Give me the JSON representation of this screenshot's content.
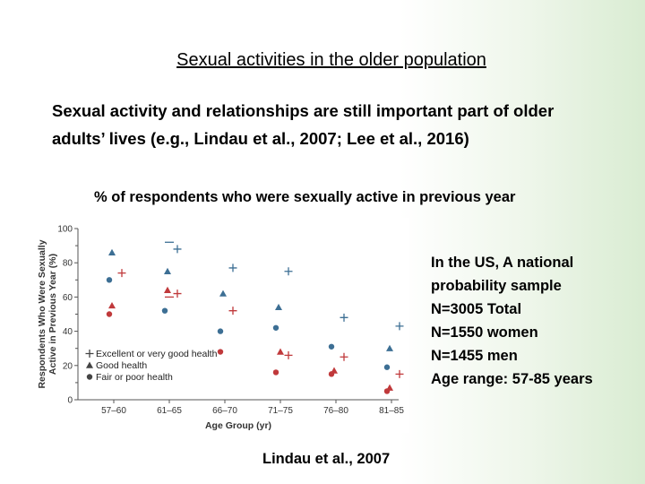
{
  "slide": {
    "title": "Sexual activities in the older population",
    "intro_line1": "Sexual activity and relationships are still important part of older",
    "intro_line2": "adults’ lives (e.g., Lindau et al., 2007; Lee et al., 2016)",
    "chart_caption": "% of respondents who were sexually active in previous year",
    "notes": [
      "In the US, A national",
      "probability sample",
      "N=3005 Total",
      "N=1550 women",
      "N=1455 men",
      "Age range: 57-85 years"
    ],
    "citation": "Lindau et al., 2007"
  },
  "chart_data": {
    "type": "scatter",
    "xlabel": "Age Group (yr)",
    "ylabel_line1": "Respondents Who Were Sexually",
    "ylabel_line2": "Active in Previous Year (%)",
    "categories": [
      "57–60",
      "61–65",
      "66–70",
      "71–75",
      "76–80",
      "81–85"
    ],
    "ylim": [
      0,
      100
    ],
    "y_ticks": [
      0,
      20,
      40,
      60,
      80,
      100
    ],
    "y_tick_labels": [
      "0",
      "20",
      "40",
      "60",
      "80",
      "100"
    ],
    "grid": false,
    "legend_position": "bottom-left",
    "colors": {
      "men": "#3d6f94",
      "women": "#c0393b"
    },
    "legend": [
      {
        "symbol": "+",
        "label": "Excellent or very good health"
      },
      {
        "symbol": "▲",
        "label": "Good health"
      },
      {
        "symbol": "●",
        "label": "Fair or poor health"
      }
    ],
    "series": [
      {
        "group": "men",
        "health": "excellent",
        "marker": "plus",
        "values": [
          null,
          88,
          77,
          75,
          48,
          43
        ]
      },
      {
        "group": "men",
        "health": "good",
        "marker": "triangle",
        "values": [
          86,
          75,
          62,
          54,
          null,
          30
        ]
      },
      {
        "group": "men",
        "health": "fair",
        "marker": "circle",
        "values": [
          70,
          52,
          40,
          42,
          31,
          19
        ]
      },
      {
        "group": "women",
        "health": "excellent",
        "marker": "plus",
        "values": [
          74,
          62,
          52,
          26,
          25,
          15
        ]
      },
      {
        "group": "women",
        "health": "good",
        "marker": "triangle",
        "values": [
          55,
          64,
          null,
          null,
          17,
          7
        ]
      },
      {
        "group": "women",
        "health": "fair",
        "marker": "circle",
        "values": [
          50,
          null,
          28,
          16,
          15,
          5
        ]
      }
    ],
    "extra_marks": [
      {
        "group": "men",
        "marker": "dash",
        "category": "61–65",
        "value": 92
      },
      {
        "group": "women",
        "marker": "dash",
        "category": "61–65",
        "value": 60
      },
      {
        "group": "women",
        "marker": "triangle",
        "category": "71–75",
        "value": 28
      }
    ]
  }
}
